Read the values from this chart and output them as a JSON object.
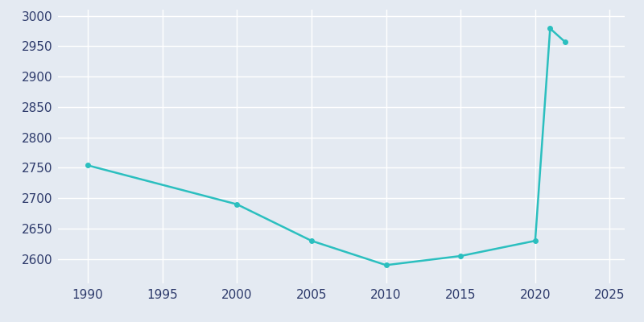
{
  "years": [
    1990,
    2000,
    2005,
    2010,
    2015,
    2020,
    2021,
    2022
  ],
  "population": [
    2754,
    2690,
    2630,
    2590,
    2605,
    2630,
    2979,
    2957
  ],
  "line_color": "#2bbfbf",
  "marker_color": "#2bbfbf",
  "background_color": "#e4eaf2",
  "grid_color": "#ffffff",
  "text_color": "#2d3a6b",
  "xlim": [
    1988,
    2026
  ],
  "ylim": [
    2560,
    3010
  ],
  "xticks": [
    1990,
    1995,
    2000,
    2005,
    2010,
    2015,
    2020,
    2025
  ],
  "yticks": [
    2600,
    2650,
    2700,
    2750,
    2800,
    2850,
    2900,
    2950,
    3000
  ],
  "marker_size": 4,
  "linewidth": 1.8
}
